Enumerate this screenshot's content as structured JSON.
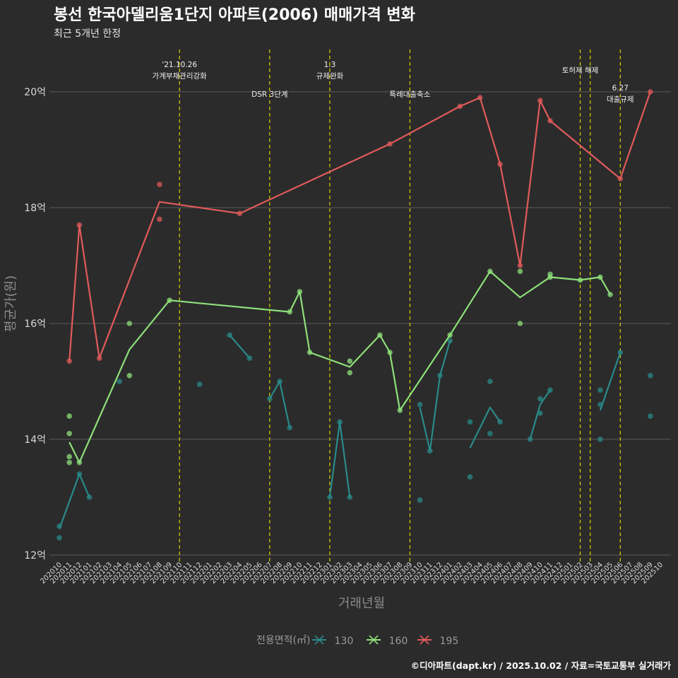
{
  "colors": {
    "background": "#2b2b2b",
    "grid": "#595959",
    "vline": "#d4d400",
    "s130": "#2a8a8a",
    "s160": "#8ee07a",
    "s195": "#e05a5a"
  },
  "chart_data": {
    "type": "line",
    "title": "봉선 한국아델리움1단지 아파트(2006) 매매가격 변화",
    "subtitle": "최근 5개년 한정",
    "xlabel": "거래년월",
    "ylabel": "평균가(원)",
    "ylim": [
      12,
      20.7
    ],
    "yticks": [
      12,
      14,
      16,
      18,
      20
    ],
    "ytick_labels": [
      "12억",
      "14억",
      "16억",
      "18억",
      "20억"
    ],
    "categories": [
      "202010",
      "202011",
      "202012",
      "202101",
      "202102",
      "202103",
      "202104",
      "202105",
      "202106",
      "202107",
      "202108",
      "202109",
      "202110",
      "202111",
      "202112",
      "202201",
      "202202",
      "202203",
      "202204",
      "202205",
      "202206",
      "202207",
      "202208",
      "202209",
      "202210",
      "202211",
      "202212",
      "202301",
      "202302",
      "202303",
      "202304",
      "202305",
      "202306",
      "202307",
      "202308",
      "202309",
      "202310",
      "202311",
      "202312",
      "202401",
      "202402",
      "202403",
      "202404",
      "202405",
      "202406",
      "202407",
      "202408",
      "202409",
      "202410",
      "202411",
      "202412",
      "202501",
      "202502",
      "202503",
      "202504",
      "202505",
      "202506",
      "202507",
      "202508",
      "202509",
      "202510"
    ],
    "legend_title": "전용면적(㎡)",
    "caption": "©디아파트(dapt.kr) / 2025.10.02 / 자료=국토교통부 실거래가",
    "series": [
      {
        "name": "130",
        "colorKey": "s130",
        "lines": [
          [
            [
              0,
              12.45
            ],
            [
              2,
              13.4
            ],
            [
              3,
              13.0
            ]
          ],
          [
            [
              17,
              15.8
            ],
            [
              19,
              15.4
            ]
          ],
          [
            [
              21,
              14.7
            ],
            [
              22,
              15.0
            ],
            [
              23,
              14.2
            ]
          ],
          [
            [
              27,
              13.0
            ],
            [
              28,
              14.3
            ],
            [
              29,
              13.0
            ]
          ],
          [
            [
              36,
              14.55
            ],
            [
              37,
              13.8
            ],
            [
              38,
              15.1
            ],
            [
              39,
              15.7
            ]
          ],
          [
            [
              41,
              13.85
            ],
            [
              43,
              14.55
            ],
            [
              44,
              14.3
            ]
          ],
          [
            [
              47,
              14.0
            ],
            [
              48,
              14.6
            ],
            [
              49,
              14.85
            ]
          ],
          [
            [
              54,
              14.5
            ],
            [
              56,
              15.5
            ]
          ]
        ],
        "points": [
          [
            0,
            12.3
          ],
          [
            0,
            12.5
          ],
          [
            2,
            13.4
          ],
          [
            3,
            13.0
          ],
          [
            6,
            15.0
          ],
          [
            14,
            14.95
          ],
          [
            17,
            15.8
          ],
          [
            19,
            15.4
          ],
          [
            21,
            14.7
          ],
          [
            22,
            15.0
          ],
          [
            23,
            14.2
          ],
          [
            27,
            13.0
          ],
          [
            28,
            14.3
          ],
          [
            29,
            13.0
          ],
          [
            36,
            14.6
          ],
          [
            36,
            12.95
          ],
          [
            37,
            13.8
          ],
          [
            38,
            15.1
          ],
          [
            39,
            15.7
          ],
          [
            41,
            14.3
          ],
          [
            41,
            13.35
          ],
          [
            43,
            15.0
          ],
          [
            43,
            14.1
          ],
          [
            44,
            14.3
          ],
          [
            47,
            14.0
          ],
          [
            48,
            14.7
          ],
          [
            48,
            14.45
          ],
          [
            49,
            14.85
          ],
          [
            54,
            14.85
          ],
          [
            54,
            14.6
          ],
          [
            54,
            14.0
          ],
          [
            56,
            15.5
          ],
          [
            59,
            15.1
          ],
          [
            59,
            14.4
          ]
        ]
      },
      {
        "name": "160",
        "colorKey": "s160",
        "lines": [
          [
            [
              1,
              13.95
            ],
            [
              2,
              13.6
            ],
            [
              7,
              15.55
            ],
            [
              11,
              16.4
            ],
            [
              23,
              16.2
            ],
            [
              24,
              16.55
            ],
            [
              25,
              15.5
            ],
            [
              29,
              15.25
            ],
            [
              32,
              15.8
            ],
            [
              33,
              15.5
            ],
            [
              34,
              14.5
            ],
            [
              39,
              15.8
            ],
            [
              43,
              16.9
            ],
            [
              46,
              16.45
            ],
            [
              49,
              16.8
            ],
            [
              52,
              16.75
            ],
            [
              54,
              16.8
            ],
            [
              55,
              16.5
            ]
          ]
        ],
        "points": [
          [
            1,
            14.4
          ],
          [
            1,
            14.1
          ],
          [
            1,
            13.7
          ],
          [
            1,
            13.6
          ],
          [
            2,
            13.6
          ],
          [
            7,
            16.0
          ],
          [
            7,
            15.1
          ],
          [
            11,
            16.4
          ],
          [
            23,
            16.2
          ],
          [
            24,
            16.55
          ],
          [
            25,
            15.5
          ],
          [
            29,
            15.35
          ],
          [
            29,
            15.15
          ],
          [
            32,
            15.8
          ],
          [
            33,
            15.5
          ],
          [
            34,
            14.5
          ],
          [
            39,
            15.8
          ],
          [
            43,
            16.9
          ],
          [
            46,
            16.9
          ],
          [
            46,
            16.0
          ],
          [
            49,
            16.85
          ],
          [
            49,
            16.8
          ],
          [
            52,
            16.75
          ],
          [
            54,
            16.8
          ],
          [
            55,
            16.5
          ]
        ]
      },
      {
        "name": "195",
        "colorKey": "s195",
        "lines": [
          [
            [
              1,
              15.35
            ],
            [
              2,
              17.7
            ],
            [
              4,
              15.4
            ],
            [
              10,
              18.1
            ],
            [
              18,
              17.9
            ],
            [
              33,
              19.1
            ],
            [
              40,
              19.75
            ],
            [
              42,
              19.9
            ],
            [
              44,
              18.75
            ],
            [
              46,
              17.0
            ],
            [
              48,
              19.85
            ],
            [
              49,
              19.5
            ],
            [
              56,
              18.5
            ],
            [
              59,
              20.0
            ]
          ]
        ],
        "points": [
          [
            1,
            15.35
          ],
          [
            2,
            17.7
          ],
          [
            4,
            15.4
          ],
          [
            10,
            18.4
          ],
          [
            10,
            17.8
          ],
          [
            18,
            17.9
          ],
          [
            33,
            19.1
          ],
          [
            40,
            19.75
          ],
          [
            42,
            19.9
          ],
          [
            44,
            18.75
          ],
          [
            46,
            17.0
          ],
          [
            48,
            19.85
          ],
          [
            49,
            19.5
          ],
          [
            56,
            18.5
          ],
          [
            59,
            20.0
          ]
        ]
      }
    ],
    "annotations": [
      {
        "x": 12,
        "lines": [
          "'21.10.26",
          "가계부채관리강화"
        ]
      },
      {
        "x": 21,
        "lines": [
          "DSR 3단계"
        ]
      },
      {
        "x": 27,
        "lines": [
          "1.3",
          "규제완화"
        ]
      },
      {
        "x": 35,
        "lines": [
          "특례대출축소"
        ]
      },
      {
        "x": 52,
        "lines": [
          "토허제 해제"
        ]
      },
      {
        "x": 53,
        "lines": []
      },
      {
        "x": 56,
        "lines": [
          "6.27",
          "대출규제"
        ]
      }
    ]
  }
}
